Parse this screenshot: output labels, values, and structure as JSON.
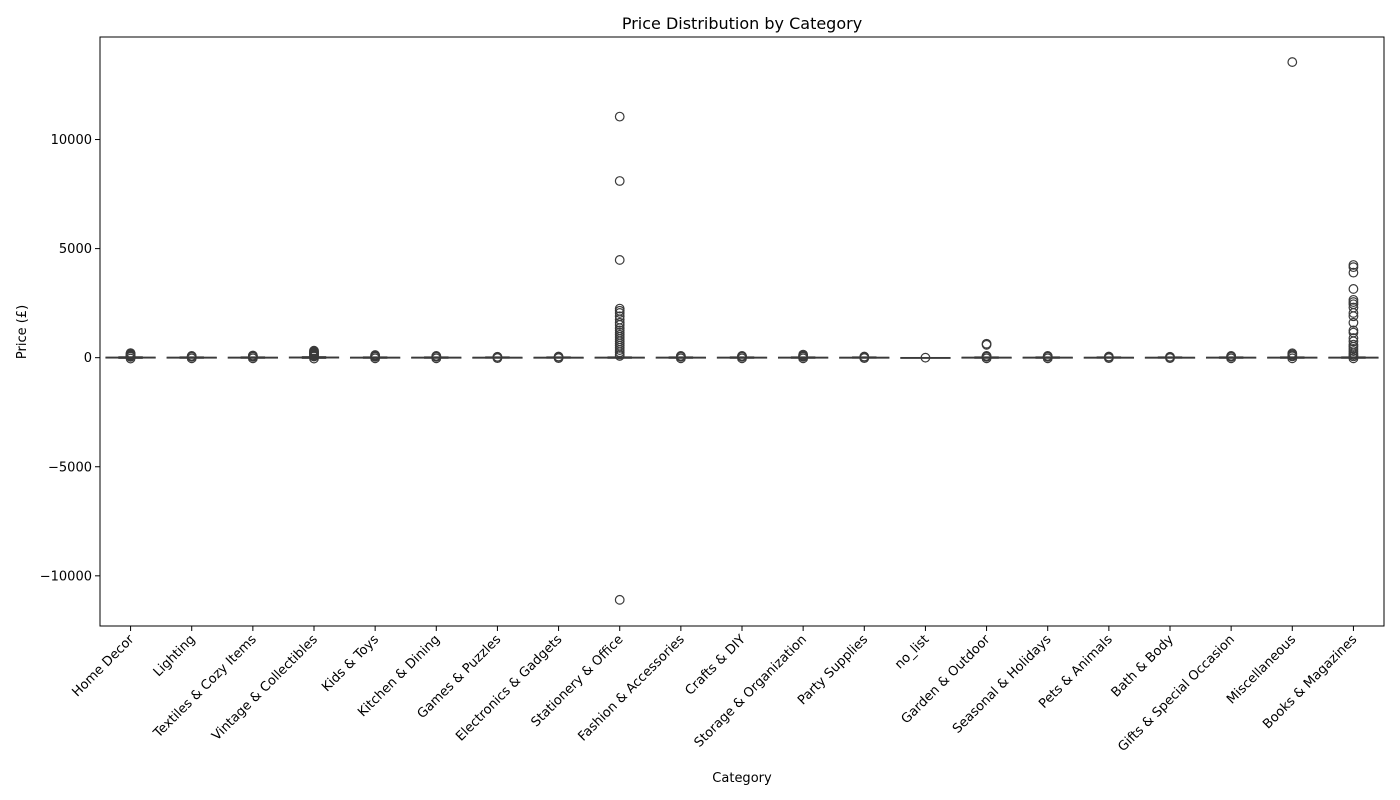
{
  "chart_data": {
    "type": "box",
    "title": "Price Distribution by Category",
    "xlabel": "Category",
    "ylabel": "Price (£)",
    "ylim": [
      -12300,
      14700
    ],
    "yticks": [
      -10000,
      -5000,
      0,
      5000,
      10000
    ],
    "grid": false,
    "box_color": "#3a3a3a",
    "categories": [
      "Home Decor",
      "Lighting",
      "Textiles & Cozy Items",
      "Vintage & Collectibles",
      "Kids & Toys",
      "Kitchen & Dining",
      "Games & Puzzles",
      "Electronics & Gadgets",
      "Stationery & Office",
      "Fashion & Accessories",
      "Crafts & DIY",
      "Storage & Organization",
      "Party Supplies",
      "no_list",
      "Garden & Outdoor",
      "Seasonal & Holidays",
      "Pets & Animals",
      "Bath & Body",
      "Gifts & Special Occasion",
      "Miscellaneous",
      "Books & Magazines"
    ],
    "series": [
      {
        "whisker_low": -20,
        "whisker_high": 35,
        "q1": 2,
        "median": 6,
        "q3": 15,
        "outliers": [
          40,
          60,
          80,
          100,
          120,
          150,
          180,
          210,
          -40
        ]
      },
      {
        "whisker_low": -15,
        "whisker_high": 30,
        "q1": 2,
        "median": 5,
        "q3": 12,
        "outliers": [
          40,
          60,
          80,
          -30
        ]
      },
      {
        "whisker_low": -15,
        "whisker_high": 30,
        "q1": 2,
        "median": 5,
        "q3": 12,
        "outliers": [
          40,
          60,
          80,
          100,
          -30
        ]
      },
      {
        "whisker_low": -20,
        "whisker_high": 40,
        "q1": 3,
        "median": 8,
        "q3": 18,
        "outliers": [
          50,
          80,
          120,
          160,
          200,
          240,
          280,
          320,
          -40
        ]
      },
      {
        "whisker_low": -15,
        "whisker_high": 30,
        "q1": 2,
        "median": 5,
        "q3": 12,
        "outliers": [
          40,
          60,
          90,
          120,
          -30
        ]
      },
      {
        "whisker_low": -15,
        "whisker_high": 30,
        "q1": 2,
        "median": 5,
        "q3": 12,
        "outliers": [
          40,
          60,
          80,
          -30
        ]
      },
      {
        "whisker_low": -10,
        "whisker_high": 25,
        "q1": 2,
        "median": 4,
        "q3": 10,
        "outliers": [
          30,
          40,
          -20
        ]
      },
      {
        "whisker_low": -10,
        "whisker_high": 25,
        "q1": 2,
        "median": 4,
        "q3": 10,
        "outliers": [
          30,
          50,
          -20
        ]
      },
      {
        "whisker_low": -15,
        "whisker_high": 30,
        "q1": 2,
        "median": 5,
        "q3": 12,
        "outliers": [
          11050,
          8100,
          4480,
          2250,
          2150,
          2050,
          1900,
          1750,
          1600,
          1500,
          1350,
          1250,
          1150,
          1050,
          950,
          850,
          750,
          650,
          550,
          450,
          350,
          250,
          150,
          80,
          -11100
        ]
      },
      {
        "whisker_low": -15,
        "whisker_high": 30,
        "q1": 2,
        "median": 5,
        "q3": 12,
        "outliers": [
          40,
          60,
          80,
          -30
        ]
      },
      {
        "whisker_low": -15,
        "whisker_high": 30,
        "q1": 2,
        "median": 5,
        "q3": 12,
        "outliers": [
          40,
          60,
          80,
          -30
        ]
      },
      {
        "whisker_low": -15,
        "whisker_high": 30,
        "q1": 2,
        "median": 5,
        "q3": 12,
        "outliers": [
          40,
          70,
          100,
          140,
          -30
        ]
      },
      {
        "whisker_low": -10,
        "whisker_high": 25,
        "q1": 2,
        "median": 4,
        "q3": 10,
        "outliers": [
          30,
          50,
          -20
        ]
      },
      {
        "whisker_low": 0,
        "whisker_high": 0,
        "q1": 0,
        "median": 0,
        "q3": 0,
        "outliers": [
          0
        ]
      },
      {
        "whisker_low": -15,
        "whisker_high": 30,
        "q1": 2,
        "median": 5,
        "q3": 12,
        "outliers": [
          640,
          590,
          40,
          60,
          80,
          -30
        ]
      },
      {
        "whisker_low": -15,
        "whisker_high": 30,
        "q1": 2,
        "median": 5,
        "q3": 12,
        "outliers": [
          40,
          60,
          80,
          -30
        ]
      },
      {
        "whisker_low": -10,
        "whisker_high": 25,
        "q1": 2,
        "median": 4,
        "q3": 10,
        "outliers": [
          30,
          50,
          -20
        ]
      },
      {
        "whisker_low": -10,
        "whisker_high": 25,
        "q1": 2,
        "median": 4,
        "q3": 10,
        "outliers": [
          30,
          40,
          -20
        ]
      },
      {
        "whisker_low": -15,
        "whisker_high": 30,
        "q1": 2,
        "median": 5,
        "q3": 12,
        "outliers": [
          40,
          60,
          80,
          -30
        ]
      },
      {
        "whisker_low": -15,
        "whisker_high": 30,
        "q1": 2,
        "median": 5,
        "q3": 12,
        "outliers": [
          13550,
          200,
          150,
          100,
          60,
          -30
        ]
      },
      {
        "whisker_low": -15,
        "whisker_high": 30,
        "q1": 2,
        "median": 5,
        "q3": 12,
        "outliers": [
          4250,
          4150,
          3900,
          3150,
          2650,
          2550,
          2450,
          2300,
          2050,
          1900,
          1600,
          1250,
          1150,
          900,
          750,
          600,
          500,
          400,
          300,
          200,
          120,
          60,
          -30
        ]
      }
    ]
  }
}
